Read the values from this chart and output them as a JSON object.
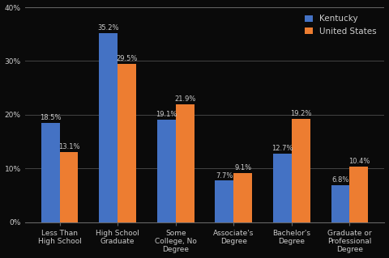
{
  "categories": [
    "Less Than\nHigh School",
    "High School\nGraduate",
    "Some\nCollege, No\nDegree",
    "Associate's\nDegree",
    "Bachelor's\nDegree",
    "Graduate or\nProfessional\nDegree"
  ],
  "kentucky": [
    18.5,
    35.2,
    19.1,
    7.7,
    12.7,
    6.8
  ],
  "us": [
    13.1,
    29.5,
    21.9,
    9.1,
    19.2,
    10.4
  ],
  "kentucky_color": "#4472C4",
  "us_color": "#ED7D31",
  "legend_kentucky": "Kentucky",
  "legend_us": "United States",
  "ylim": [
    0,
    40
  ],
  "yticks": [
    0,
    10,
    20,
    30,
    40
  ],
  "bar_width": 0.32,
  "label_fontsize": 6.0,
  "tick_fontsize": 6.5,
  "legend_fontsize": 7.5,
  "background_color": "#0a0a0a",
  "text_color": "#cccccc",
  "grid_color": "#444444",
  "spine_color": "#666666"
}
